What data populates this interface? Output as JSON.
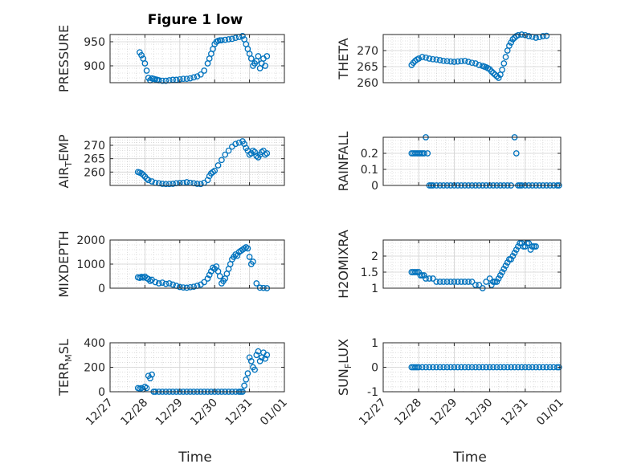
{
  "title": "Figure 1 low",
  "marker_color": "#0072BD",
  "axis_color": "#262626",
  "grid_color": "#b0b0b0",
  "chart_data": [
    {
      "type": "scatter",
      "ylabel": "PRESSURE",
      "ylim": [
        865,
        965
      ],
      "yticks": [
        900,
        950
      ],
      "xticks": [
        "12/27",
        "12/28",
        "12/29",
        "12/30",
        "12/31",
        "01/01"
      ],
      "xlim": [
        0,
        5
      ],
      "grid": true,
      "minor_grid": true,
      "x": [
        0.85,
        0.9,
        0.95,
        1.0,
        1.05,
        1.1,
        1.15,
        1.2,
        1.25,
        1.3,
        1.35,
        1.4,
        1.5,
        1.6,
        1.7,
        1.8,
        1.9,
        2.0,
        2.1,
        2.2,
        2.3,
        2.4,
        2.5,
        2.6,
        2.7,
        2.8,
        2.85,
        2.9,
        2.95,
        3.0,
        3.05,
        3.1,
        3.15,
        3.2,
        3.3,
        3.4,
        3.5,
        3.6,
        3.7,
        3.8,
        3.85,
        3.9,
        3.95,
        4.0,
        4.05,
        4.1,
        4.15,
        4.2,
        4.25,
        4.3,
        4.35,
        4.4,
        4.45,
        4.5
      ],
      "y": [
        928,
        922,
        915,
        905,
        890,
        875,
        870,
        874,
        873,
        872,
        871,
        870,
        869,
        869,
        870,
        871,
        871,
        872,
        873,
        873,
        874,
        876,
        878,
        882,
        890,
        905,
        915,
        925,
        935,
        945,
        950,
        952,
        953,
        953,
        954,
        955,
        956,
        958,
        960,
        962,
        955,
        945,
        935,
        925,
        915,
        900,
        905,
        910,
        920,
        895,
        905,
        915,
        900,
        920
      ]
    },
    {
      "type": "scatter",
      "ylabel": "THETA",
      "ylim": [
        260,
        275
      ],
      "yticks": [
        260,
        265,
        270
      ],
      "xticks": [
        "12/27",
        "12/28",
        "12/29",
        "12/30",
        "12/31",
        "01/01"
      ],
      "xlim": [
        0,
        5
      ],
      "grid": true,
      "minor_grid": true,
      "x": [
        0.8,
        0.85,
        0.9,
        0.95,
        1.0,
        1.1,
        1.2,
        1.3,
        1.4,
        1.5,
        1.6,
        1.7,
        1.8,
        1.9,
        2.0,
        2.1,
        2.2,
        2.3,
        2.4,
        2.5,
        2.6,
        2.7,
        2.8,
        2.85,
        2.9,
        2.95,
        3.0,
        3.05,
        3.1,
        3.15,
        3.2,
        3.25,
        3.3,
        3.35,
        3.4,
        3.45,
        3.5,
        3.55,
        3.6,
        3.65,
        3.7,
        3.75,
        3.8,
        3.9,
        4.0,
        4.1,
        4.2,
        4.3,
        4.4,
        4.5,
        4.6
      ],
      "y": [
        265.5,
        266.2,
        266.8,
        267.2,
        267.5,
        268.0,
        267.8,
        267.5,
        267.3,
        267.2,
        267.0,
        266.8,
        266.7,
        266.6,
        266.5,
        266.6,
        266.7,
        266.8,
        266.5,
        266.2,
        266.0,
        265.5,
        265.2,
        265.0,
        264.8,
        264.5,
        264.2,
        263.5,
        263.0,
        262.5,
        262.0,
        261.5,
        262.5,
        264.0,
        266.0,
        268.0,
        270.0,
        271.5,
        272.5,
        273.5,
        274.0,
        274.5,
        274.8,
        275.0,
        274.8,
        274.5,
        274.3,
        274.0,
        274.2,
        274.5,
        274.6
      ]
    },
    {
      "type": "scatter",
      "ylabel": "AIR_TEMP",
      "ylim": [
        255,
        273
      ],
      "yticks": [
        260,
        265,
        270
      ],
      "xticks": [
        "12/27",
        "12/28",
        "12/29",
        "12/30",
        "12/31",
        "01/01"
      ],
      "xlim": [
        0,
        5
      ],
      "grid": true,
      "minor_grid": true,
      "x": [
        0.8,
        0.85,
        0.9,
        0.95,
        1.0,
        1.05,
        1.1,
        1.2,
        1.3,
        1.4,
        1.5,
        1.6,
        1.7,
        1.8,
        1.9,
        2.0,
        2.1,
        2.2,
        2.3,
        2.4,
        2.5,
        2.6,
        2.7,
        2.8,
        2.85,
        2.9,
        2.95,
        3.0,
        3.1,
        3.2,
        3.3,
        3.4,
        3.5,
        3.6,
        3.7,
        3.8,
        3.85,
        3.9,
        3.95,
        4.0,
        4.05,
        4.1,
        4.15,
        4.2,
        4.25,
        4.3,
        4.35,
        4.4,
        4.45,
        4.5
      ],
      "y": [
        260.0,
        259.8,
        259.5,
        259.0,
        258.3,
        257.5,
        257.0,
        256.5,
        256.0,
        255.8,
        255.6,
        255.5,
        255.5,
        255.6,
        255.8,
        255.9,
        256.0,
        256.2,
        256.0,
        255.8,
        255.6,
        255.5,
        256.0,
        257.0,
        258.5,
        259.5,
        260.0,
        260.5,
        262.5,
        264.5,
        266.5,
        268.0,
        269.5,
        270.5,
        271.0,
        271.5,
        270.5,
        269.0,
        268.0,
        266.5,
        267.0,
        268.0,
        267.5,
        266.0,
        265.5,
        266.5,
        267.5,
        268.0,
        266.5,
        267.0
      ]
    },
    {
      "type": "scatter",
      "ylabel": "RAINFALL",
      "ylim": [
        0,
        0.3
      ],
      "yticks": [
        0,
        0.1,
        0.2
      ],
      "xticks": [
        "12/27",
        "12/28",
        "12/29",
        "12/30",
        "12/31",
        "01/01"
      ],
      "xlim": [
        0,
        5
      ],
      "grid": true,
      "minor_grid": true,
      "x": [
        0.8,
        0.85,
        0.9,
        0.95,
        1.0,
        1.05,
        1.1,
        1.15,
        1.2,
        1.25,
        1.3,
        1.35,
        1.4,
        1.5,
        1.6,
        1.7,
        1.8,
        1.9,
        2.0,
        2.1,
        2.2,
        2.3,
        2.4,
        2.5,
        2.6,
        2.7,
        2.8,
        2.9,
        3.0,
        3.1,
        3.2,
        3.3,
        3.4,
        3.5,
        3.6,
        3.7,
        3.75,
        3.8,
        3.85,
        3.9,
        4.0,
        4.1,
        4.2,
        4.3,
        4.4,
        4.5,
        4.6,
        4.7,
        4.8,
        4.9,
        4.95
      ],
      "y": [
        0.2,
        0.2,
        0.2,
        0.2,
        0.2,
        0.2,
        0.2,
        0.2,
        0.3,
        0.2,
        0,
        0,
        0,
        0,
        0,
        0,
        0,
        0,
        0,
        0,
        0,
        0,
        0,
        0,
        0,
        0,
        0,
        0,
        0,
        0,
        0,
        0,
        0,
        0,
        0,
        0.3,
        0.2,
        0,
        0,
        0,
        0,
        0,
        0,
        0,
        0,
        0,
        0,
        0,
        0,
        0,
        0
      ]
    },
    {
      "type": "scatter",
      "ylabel": "MIXDEPTH",
      "ylim": [
        0,
        2000
      ],
      "yticks": [
        0,
        1000,
        2000
      ],
      "xticks": [
        "12/27",
        "12/28",
        "12/29",
        "12/30",
        "12/31",
        "01/01"
      ],
      "xlim": [
        0,
        5
      ],
      "grid": true,
      "minor_grid": true,
      "x": [
        0.8,
        0.85,
        0.9,
        0.95,
        1.0,
        1.05,
        1.1,
        1.15,
        1.2,
        1.3,
        1.4,
        1.5,
        1.6,
        1.7,
        1.8,
        1.9,
        2.0,
        2.1,
        2.2,
        2.3,
        2.4,
        2.5,
        2.6,
        2.7,
        2.8,
        2.85,
        2.9,
        2.95,
        3.0,
        3.05,
        3.1,
        3.15,
        3.2,
        3.25,
        3.3,
        3.35,
        3.4,
        3.45,
        3.5,
        3.55,
        3.6,
        3.65,
        3.7,
        3.75,
        3.8,
        3.85,
        3.9,
        3.95,
        4.0,
        4.05,
        4.1,
        4.2,
        4.3,
        4.4,
        4.5
      ],
      "y": [
        450,
        430,
        470,
        440,
        480,
        420,
        380,
        300,
        350,
        250,
        200,
        230,
        180,
        200,
        150,
        100,
        50,
        30,
        20,
        40,
        60,
        100,
        150,
        250,
        400,
        550,
        700,
        850,
        800,
        900,
        700,
        500,
        200,
        300,
        400,
        600,
        800,
        1000,
        1200,
        1300,
        1400,
        1350,
        1500,
        1550,
        1600,
        1650,
        1700,
        1650,
        1300,
        1000,
        1100,
        200,
        20,
        10,
        0
      ]
    },
    {
      "type": "scatter",
      "ylabel": "H2OMIXRA",
      "ylim": [
        1,
        2.5
      ],
      "yticks": [
        1,
        1.5,
        2
      ],
      "xticks": [
        "12/27",
        "12/28",
        "12/29",
        "12/30",
        "12/31",
        "01/01"
      ],
      "xlim": [
        0,
        5
      ],
      "grid": true,
      "minor_grid": true,
      "x": [
        0.8,
        0.85,
        0.9,
        0.95,
        1.0,
        1.05,
        1.1,
        1.15,
        1.2,
        1.3,
        1.4,
        1.5,
        1.6,
        1.7,
        1.8,
        1.9,
        2.0,
        2.1,
        2.2,
        2.3,
        2.4,
        2.5,
        2.6,
        2.7,
        2.8,
        2.9,
        3.0,
        3.05,
        3.1,
        3.15,
        3.2,
        3.25,
        3.3,
        3.35,
        3.4,
        3.45,
        3.5,
        3.55,
        3.6,
        3.65,
        3.7,
        3.75,
        3.8,
        3.85,
        3.9,
        3.95,
        4.0,
        4.05,
        4.1,
        4.15,
        4.2,
        4.25,
        4.3
      ],
      "y": [
        1.5,
        1.5,
        1.5,
        1.5,
        1.5,
        1.4,
        1.4,
        1.4,
        1.3,
        1.3,
        1.3,
        1.2,
        1.2,
        1.2,
        1.2,
        1.2,
        1.2,
        1.2,
        1.2,
        1.2,
        1.2,
        1.2,
        1.1,
        1.1,
        1.0,
        1.2,
        1.3,
        1.1,
        1.2,
        1.2,
        1.2,
        1.3,
        1.4,
        1.5,
        1.6,
        1.7,
        1.8,
        1.9,
        1.9,
        2.0,
        2.1,
        2.2,
        2.3,
        2.4,
        2.4,
        2.3,
        2.3,
        2.4,
        2.4,
        2.2,
        2.3,
        2.3,
        2.3
      ]
    },
    {
      "type": "scatter",
      "ylabel": "TERR_MSL",
      "ylim": [
        0,
        400
      ],
      "yticks": [
        0,
        200,
        400
      ],
      "xticks": [
        "12/27",
        "12/28",
        "12/29",
        "12/30",
        "12/31",
        "01/01"
      ],
      "xlim": [
        0,
        5
      ],
      "grid": true,
      "minor_grid": true,
      "x": [
        0.8,
        0.85,
        0.9,
        0.95,
        1.0,
        1.05,
        1.1,
        1.15,
        1.2,
        1.25,
        1.3,
        1.4,
        1.5,
        1.6,
        1.7,
        1.8,
        1.9,
        2.0,
        2.1,
        2.2,
        2.3,
        2.4,
        2.5,
        2.6,
        2.7,
        2.8,
        2.9,
        3.0,
        3.1,
        3.2,
        3.3,
        3.4,
        3.5,
        3.6,
        3.7,
        3.75,
        3.8,
        3.85,
        3.9,
        3.95,
        4.0,
        4.05,
        4.1,
        4.15,
        4.2,
        4.25,
        4.3,
        4.35,
        4.4,
        4.45,
        4.5
      ],
      "y": [
        30,
        25,
        30,
        20,
        40,
        30,
        130,
        110,
        140,
        0,
        0,
        0,
        0,
        0,
        0,
        0,
        0,
        0,
        0,
        0,
        0,
        0,
        0,
        0,
        0,
        0,
        0,
        0,
        0,
        0,
        0,
        0,
        0,
        0,
        0,
        0,
        0,
        50,
        100,
        150,
        280,
        250,
        200,
        180,
        300,
        330,
        250,
        280,
        320,
        270,
        300
      ]
    },
    {
      "type": "scatter",
      "ylabel": "SUN_FLUX",
      "ylim": [
        -1,
        1
      ],
      "yticks": [
        -1,
        0,
        1
      ],
      "xticks": [
        "12/27",
        "12/28",
        "12/29",
        "12/30",
        "12/31",
        "01/01"
      ],
      "xlim": [
        0,
        5
      ],
      "grid": true,
      "minor_grid": true,
      "x": [
        0.8,
        0.85,
        0.9,
        0.95,
        1.0,
        1.1,
        1.2,
        1.3,
        1.4,
        1.5,
        1.6,
        1.7,
        1.8,
        1.9,
        2.0,
        2.1,
        2.2,
        2.3,
        2.4,
        2.5,
        2.6,
        2.7,
        2.8,
        2.9,
        3.0,
        3.1,
        3.2,
        3.3,
        3.4,
        3.5,
        3.6,
        3.7,
        3.8,
        3.9,
        4.0,
        4.1,
        4.2,
        4.3,
        4.4,
        4.5,
        4.6,
        4.7,
        4.8,
        4.9,
        4.95
      ],
      "y": [
        0,
        0,
        0,
        0,
        0,
        0,
        0,
        0,
        0,
        0,
        0,
        0,
        0,
        0,
        0,
        0,
        0,
        0,
        0,
        0,
        0,
        0,
        0,
        0,
        0,
        0,
        0,
        0,
        0,
        0,
        0,
        0,
        0,
        0,
        0,
        0,
        0,
        0,
        0,
        0,
        0,
        0,
        0,
        0,
        0
      ]
    }
  ],
  "xlabels": [
    "Time",
    "Time"
  ]
}
